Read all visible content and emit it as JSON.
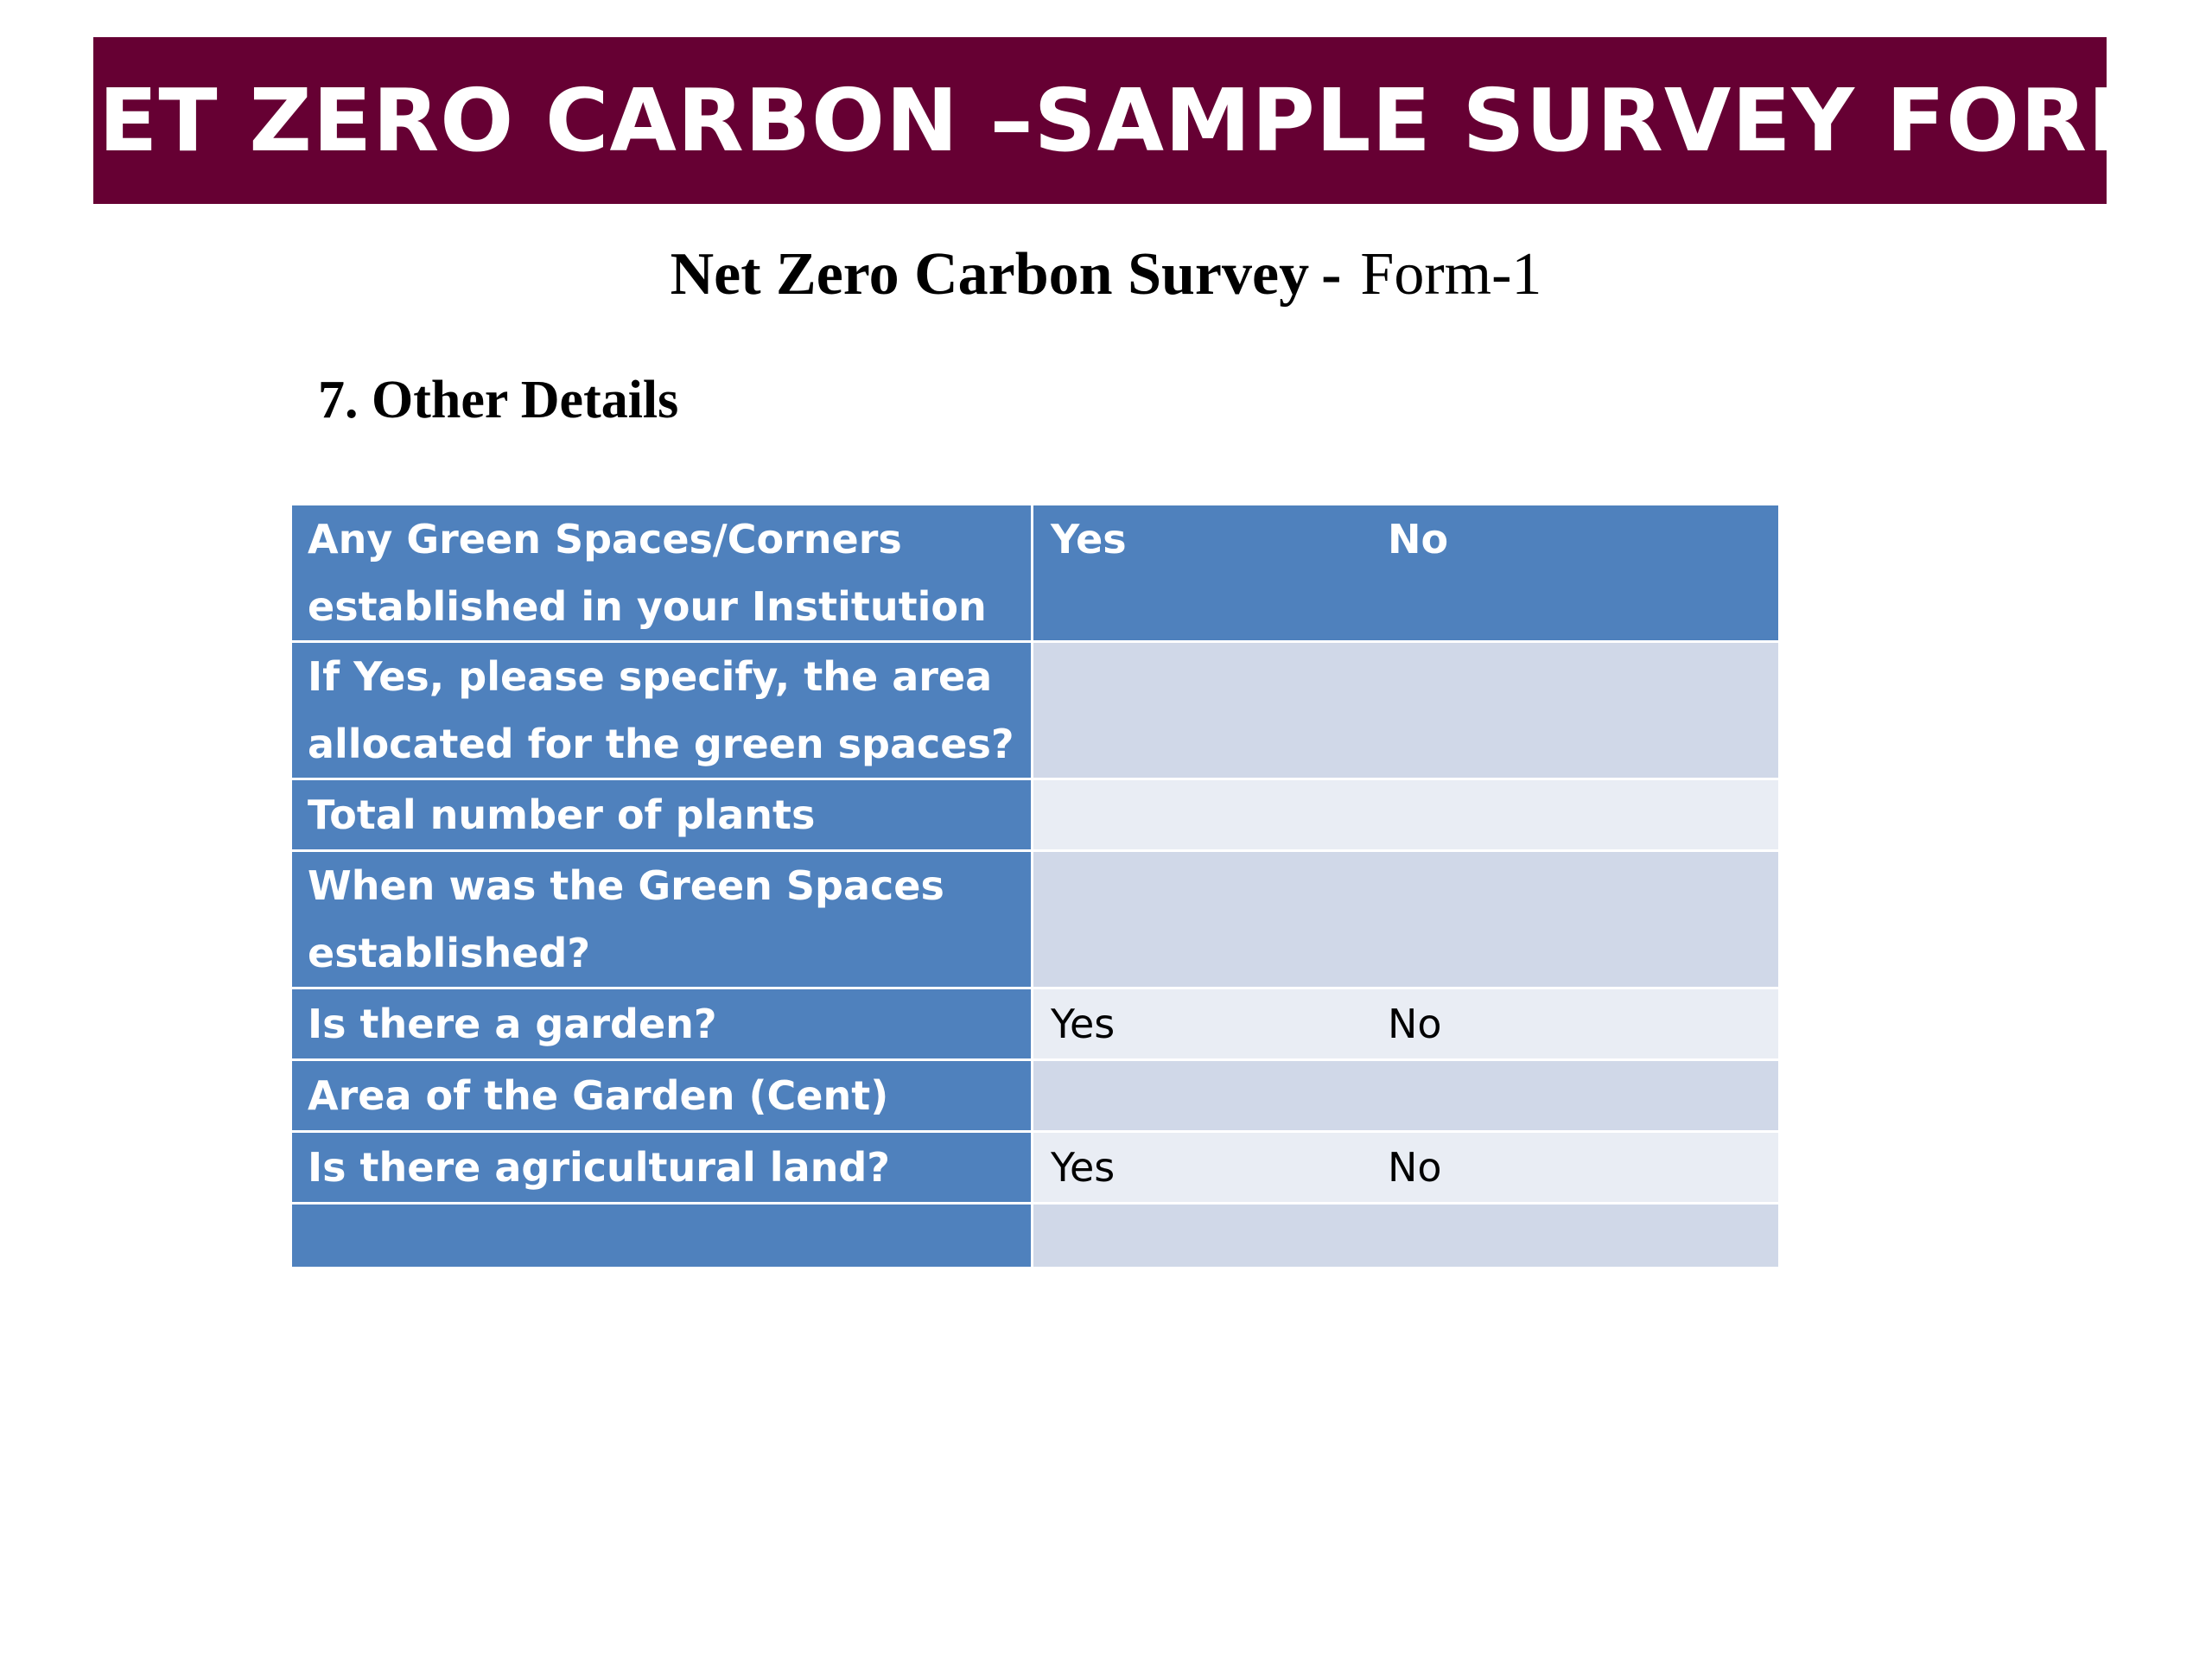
{
  "banner": {
    "title": "NET ZERO CARBON –SAMPLE SURVEY FORM"
  },
  "subtitle": {
    "bold_part": "Net Zero Carbon Survey",
    "separator": "-",
    "form": "Form-1"
  },
  "section": {
    "heading": "7. Other Details"
  },
  "table": {
    "rows": [
      {
        "question": "Any Green Spaces/Corners established in your Institution",
        "yes": "Yes",
        "no": "No"
      },
      {
        "question": "If Yes, please specify, the area allocated for the green spaces?",
        "yes": "",
        "no": ""
      },
      {
        "question": "Total number of plants",
        "yes": "",
        "no": ""
      },
      {
        "question": "When was the Green Spaces established?",
        "yes": "",
        "no": ""
      },
      {
        "question": "Is there a garden?",
        "yes": "Yes",
        "no": "No"
      },
      {
        "question": "Area of the Garden (Cent)",
        "yes": "",
        "no": ""
      },
      {
        "question": "Is there agricultural land?",
        "yes": "Yes",
        "no": "No"
      },
      {
        "question": "",
        "yes": "",
        "no": ""
      }
    ]
  },
  "colors": {
    "banner_bg": "#660033",
    "header_blue": "#4f81bd",
    "row_dark": "#d0d8e8",
    "row_light": "#e9edf4"
  }
}
